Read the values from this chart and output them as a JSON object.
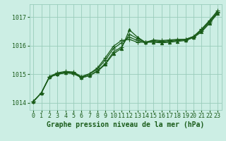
{
  "background_color": "#cceee4",
  "grid_color": "#99ccbb",
  "line_color": "#1a5c1a",
  "title": "Graphe pression niveau de la mer (hPa)",
  "tick_fontsize": 6.0,
  "xlabel_fontsize": 7.0,
  "xlim": [
    -0.5,
    23.5
  ],
  "ylim": [
    1013.75,
    1017.45
  ],
  "yticks": [
    1014,
    1015,
    1016,
    1017
  ],
  "xticks": [
    0,
    1,
    2,
    3,
    4,
    5,
    6,
    7,
    8,
    9,
    10,
    11,
    12,
    13,
    14,
    15,
    16,
    17,
    18,
    19,
    20,
    21,
    22,
    23
  ],
  "series": [
    {
      "x": [
        0,
        1,
        2,
        3,
        4,
        5,
        6,
        7,
        8,
        9,
        10,
        11,
        12,
        13,
        14,
        15,
        16,
        17,
        18,
        19,
        20,
        21,
        22,
        23
      ],
      "y": [
        1014.05,
        1014.35,
        1014.9,
        1015.0,
        1015.05,
        1015.05,
        1014.88,
        1014.95,
        1015.1,
        1015.35,
        1015.72,
        1015.9,
        1016.55,
        1016.3,
        1016.12,
        1016.12,
        1016.1,
        1016.12,
        1016.15,
        1016.18,
        1016.28,
        1016.48,
        1016.78,
        1017.12
      ],
      "marker": "^",
      "lw": 0.9
    },
    {
      "x": [
        0,
        1,
        2,
        3,
        4,
        5,
        6,
        7,
        8,
        9,
        10,
        11,
        12,
        13,
        14,
        15,
        16,
        17,
        18,
        19,
        20,
        21,
        22,
        23
      ],
      "y": [
        1014.05,
        1014.35,
        1014.9,
        1015.0,
        1015.05,
        1015.02,
        1014.88,
        1014.95,
        1015.12,
        1015.38,
        1015.78,
        1015.95,
        1016.4,
        1016.25,
        1016.12,
        1016.15,
        1016.12,
        1016.15,
        1016.18,
        1016.2,
        1016.3,
        1016.52,
        1016.82,
        1017.15
      ],
      "marker": "+",
      "lw": 0.9
    },
    {
      "x": [
        0,
        1,
        2,
        3,
        4,
        5,
        6,
        7,
        8,
        9,
        10,
        11,
        12,
        13,
        14,
        15,
        16,
        17,
        18,
        19,
        20,
        21,
        22,
        23
      ],
      "y": [
        1014.05,
        1014.35,
        1014.9,
        1015.02,
        1015.08,
        1015.05,
        1014.9,
        1015.0,
        1015.18,
        1015.5,
        1015.9,
        1016.1,
        1016.3,
        1016.18,
        1016.12,
        1016.18,
        1016.15,
        1016.18,
        1016.2,
        1016.22,
        1016.32,
        1016.55,
        1016.85,
        1017.18
      ],
      "marker": "+",
      "lw": 0.9
    },
    {
      "x": [
        0,
        1,
        2,
        3,
        4,
        5,
        6,
        7,
        8,
        9,
        10,
        11,
        12,
        13,
        14,
        15,
        16,
        17,
        18,
        19,
        20,
        21,
        22,
        23
      ],
      "y": [
        1014.05,
        1014.35,
        1014.92,
        1015.05,
        1015.1,
        1015.08,
        1014.92,
        1015.02,
        1015.22,
        1015.58,
        1015.98,
        1016.18,
        1016.22,
        1016.12,
        1016.12,
        1016.2,
        1016.18,
        1016.2,
        1016.22,
        1016.22,
        1016.32,
        1016.58,
        1016.88,
        1017.22
      ],
      "marker": "+",
      "lw": 0.9
    }
  ]
}
